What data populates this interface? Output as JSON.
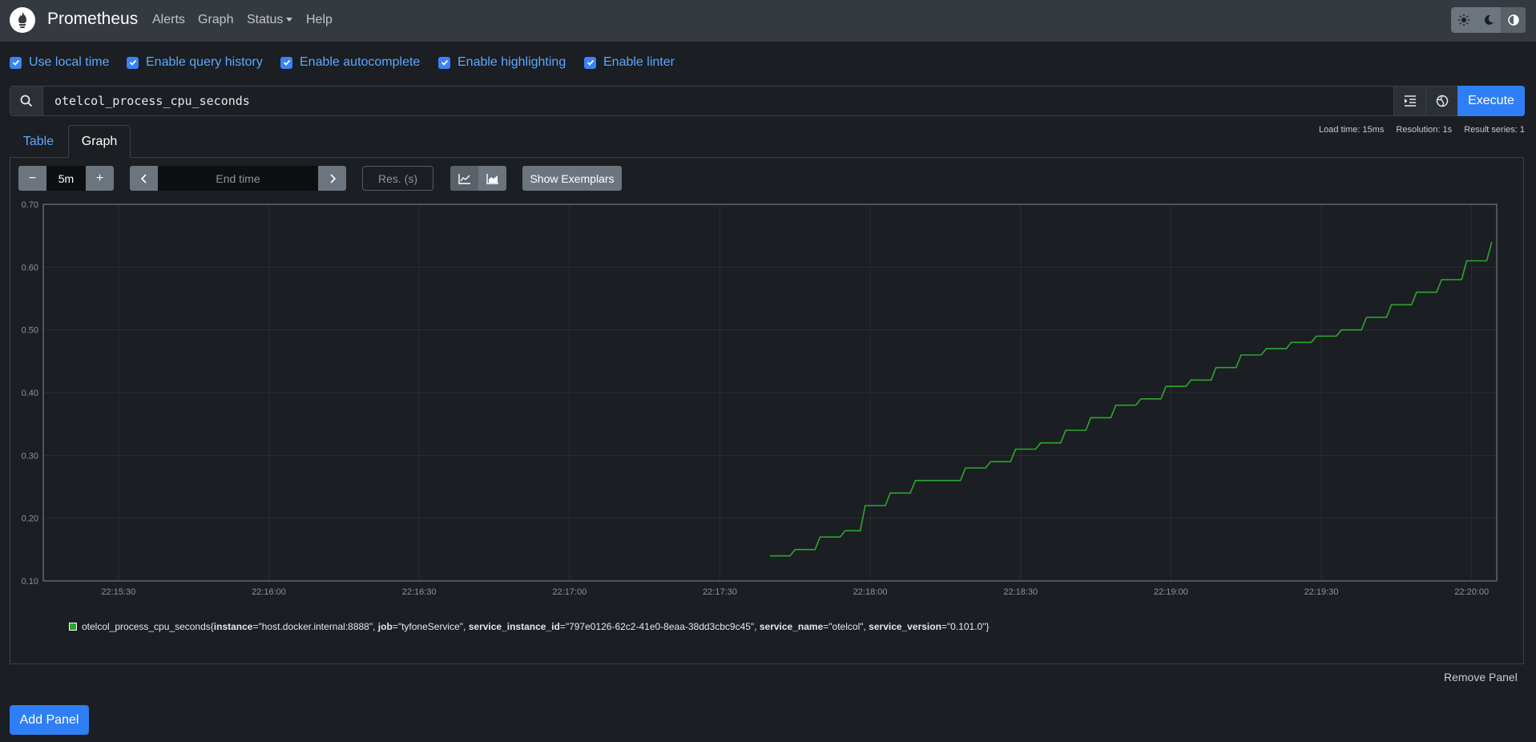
{
  "navbar": {
    "brand": "Prometheus",
    "items": [
      {
        "label": "Alerts"
      },
      {
        "label": "Graph"
      },
      {
        "label": "Status"
      },
      {
        "label": "Help"
      }
    ],
    "theme_icons": [
      "sun-icon",
      "moon-icon",
      "contrast-icon"
    ]
  },
  "options": [
    {
      "label": "Use local time",
      "checked": true
    },
    {
      "label": "Enable query history",
      "checked": true
    },
    {
      "label": "Enable autocomplete",
      "checked": true
    },
    {
      "label": "Enable highlighting",
      "checked": true
    },
    {
      "label": "Enable linter",
      "checked": true
    }
  ],
  "query": {
    "expression": "otelcol_process_cpu_seconds",
    "execute_label": "Execute"
  },
  "tabs": [
    {
      "label": "Table",
      "active": false
    },
    {
      "label": "Graph",
      "active": true
    }
  ],
  "stats": {
    "load_time": "Load time: 15ms",
    "resolution": "Resolution: 1s",
    "result_series": "Result series: 1"
  },
  "controls": {
    "minus": "−",
    "range": "5m",
    "plus": "+",
    "end_time_placeholder": "End time",
    "res_placeholder": "Res. (s)",
    "show_exemplars": "Show Exemplars"
  },
  "chart_data": {
    "type": "line",
    "x_ticks": [
      "22:15:30",
      "22:16:00",
      "22:16:30",
      "22:17:00",
      "22:17:30",
      "22:18:00",
      "22:18:30",
      "22:19:00",
      "22:19:30",
      "22:20:00"
    ],
    "y_ticks": [
      "0.10",
      "0.20",
      "0.30",
      "0.40",
      "0.50",
      "0.60",
      "0.70"
    ],
    "xlim": [
      "22:15:15",
      "22:20:05"
    ],
    "ylim": [
      0.1,
      0.7
    ],
    "grid": true,
    "legend": "bottom",
    "series": [
      {
        "color": "#2ea62e",
        "x": [
          "22:17:40",
          "22:17:44",
          "22:17:45",
          "22:17:49",
          "22:17:50",
          "22:17:54",
          "22:17:55",
          "22:17:58",
          "22:17:59",
          "22:18:03",
          "22:18:04",
          "22:18:08",
          "22:18:09",
          "22:18:18",
          "22:18:19",
          "22:18:23",
          "22:18:24",
          "22:18:28",
          "22:18:29",
          "22:18:33",
          "22:18:34",
          "22:18:38",
          "22:18:39",
          "22:18:43",
          "22:18:44",
          "22:18:48",
          "22:18:49",
          "22:18:53",
          "22:18:54",
          "22:18:58",
          "22:18:59",
          "22:19:03",
          "22:19:04",
          "22:19:08",
          "22:19:09",
          "22:19:13",
          "22:19:14",
          "22:19:18",
          "22:19:19",
          "22:19:23",
          "22:19:24",
          "22:19:28",
          "22:19:29",
          "22:19:33",
          "22:19:34",
          "22:19:38",
          "22:19:39",
          "22:19:43",
          "22:19:44",
          "22:19:48",
          "22:19:49",
          "22:19:53",
          "22:19:54",
          "22:19:58",
          "22:19:59",
          "22:20:03",
          "22:20:04"
        ],
        "y": [
          0.14,
          0.14,
          0.15,
          0.15,
          0.17,
          0.17,
          0.18,
          0.18,
          0.22,
          0.22,
          0.24,
          0.24,
          0.26,
          0.26,
          0.28,
          0.28,
          0.29,
          0.29,
          0.31,
          0.31,
          0.32,
          0.32,
          0.34,
          0.34,
          0.36,
          0.36,
          0.38,
          0.38,
          0.39,
          0.39,
          0.41,
          0.41,
          0.42,
          0.42,
          0.44,
          0.44,
          0.46,
          0.46,
          0.47,
          0.47,
          0.48,
          0.48,
          0.49,
          0.49,
          0.5,
          0.5,
          0.52,
          0.52,
          0.54,
          0.54,
          0.56,
          0.56,
          0.58,
          0.58,
          0.61,
          0.61,
          0.64
        ]
      }
    ]
  },
  "legend": {
    "metric": "otelcol_process_cpu_seconds",
    "open_brace": "{",
    "close_brace": "}",
    "labels": [
      {
        "key": "instance",
        "value": "\"host.docker.internal:8888\""
      },
      {
        "key": "job",
        "value": "\"tyfoneService\""
      },
      {
        "key": "service_instance_id",
        "value": "\"797e0126-62c2-41e0-8eaa-38dd3cbc9c45\""
      },
      {
        "key": "service_name",
        "value": "\"otelcol\""
      },
      {
        "key": "service_version",
        "value": "\"0.101.0\""
      }
    ]
  },
  "remove_panel": "Remove Panel",
  "add_panel": "Add Panel"
}
